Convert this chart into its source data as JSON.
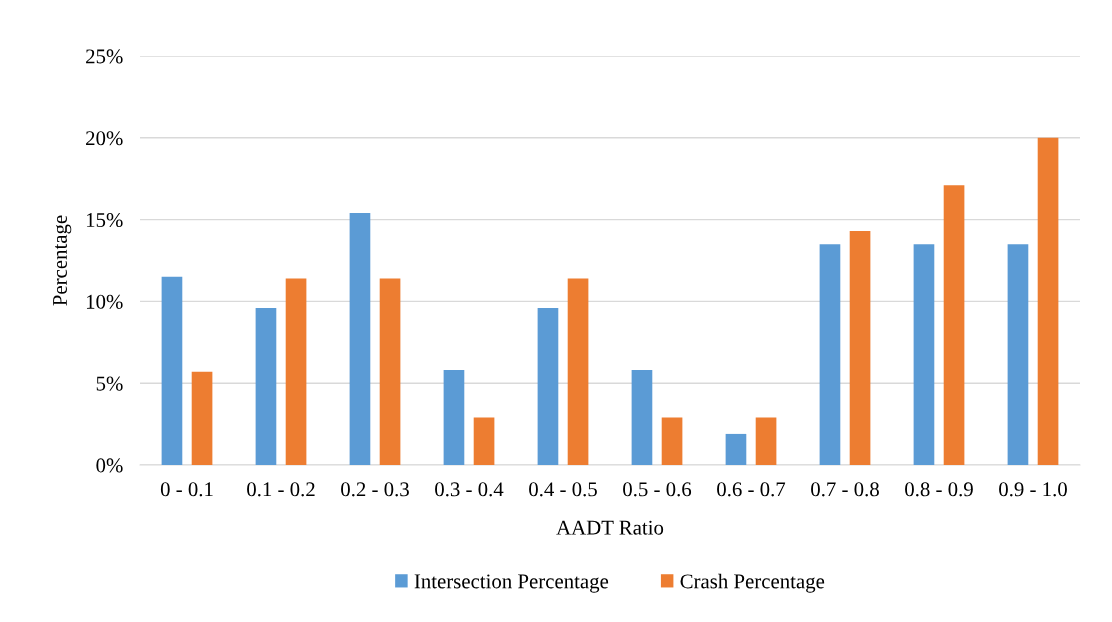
{
  "chart_data": {
    "type": "bar",
    "xlabel": "AADT Ratio",
    "ylabel": "Percentage",
    "categories": [
      "0 - 0.1",
      "0.1 - 0.2",
      "0.2 - 0.3",
      "0.3 - 0.4",
      "0.4 - 0.5",
      "0.5 - 0.6",
      "0.6 - 0.7",
      "0.7 - 0.8",
      "0.8 - 0.9",
      "0.9 - 1.0"
    ],
    "series": [
      {
        "name": "Intersection Percentage",
        "color": "#5b9bd5",
        "values": [
          11.5,
          9.6,
          15.4,
          5.8,
          9.6,
          5.8,
          1.9,
          13.5,
          13.5,
          13.5
        ]
      },
      {
        "name": "Crash Percentage",
        "color": "#ed7d31",
        "values": [
          5.7,
          11.4,
          11.4,
          2.9,
          11.4,
          2.9,
          2.9,
          14.3,
          17.1,
          20.0
        ]
      }
    ],
    "ylim": [
      0,
      25
    ],
    "yticks": [
      {
        "value": 0,
        "label": "0%"
      },
      {
        "value": 5,
        "label": "5%"
      },
      {
        "value": 10,
        "label": "10%"
      },
      {
        "value": 15,
        "label": "15%"
      },
      {
        "value": 20,
        "label": "20%"
      },
      {
        "value": 25,
        "label": "25%"
      }
    ],
    "grid": "y",
    "legend": "bottom"
  }
}
